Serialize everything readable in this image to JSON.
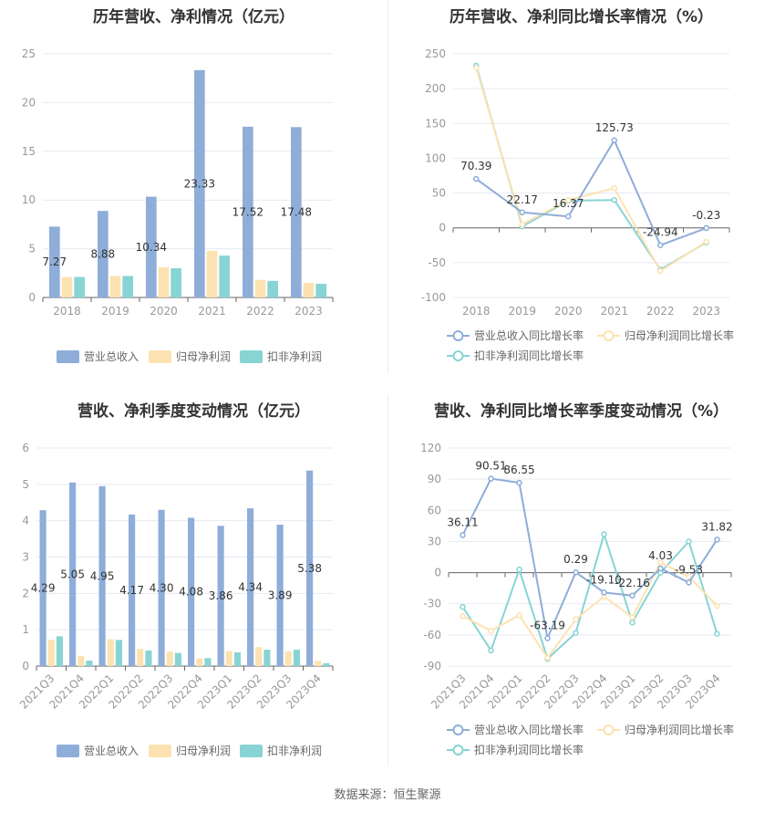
{
  "source_text": "数据来源：恒生聚源",
  "colors": {
    "revenue": "#8eadd9",
    "parent_profit": "#fde2b1",
    "deducted_profit": "#88d4d4",
    "grid": "#e6e9f3"
  },
  "chart_data": [
    {
      "type": "bar",
      "title": "历年营收、净利情况（亿元）",
      "categories": [
        "2018",
        "2019",
        "2020",
        "2021",
        "2022",
        "2023"
      ],
      "ylim": [
        0,
        25
      ],
      "yticks": [
        0,
        5,
        10,
        15,
        20,
        25
      ],
      "series": [
        {
          "name": "营业总收入",
          "values": [
            7.27,
            8.88,
            10.34,
            23.33,
            17.52,
            17.48
          ],
          "labels": [
            "7.27",
            "8.88",
            "10.34",
            "23.33",
            "17.52",
            "17.48"
          ]
        },
        {
          "name": "归母净利润",
          "values": [
            2.1,
            2.2,
            3.1,
            4.8,
            1.8,
            1.5
          ]
        },
        {
          "name": "扣非净利润",
          "values": [
            2.1,
            2.2,
            3.0,
            4.3,
            1.7,
            1.4
          ]
        }
      ],
      "legend": "bottom"
    },
    {
      "type": "line",
      "title": "历年营收、净利同比增长率情况（%）",
      "categories": [
        "2018",
        "2019",
        "2020",
        "2021",
        "2022",
        "2023"
      ],
      "ylim": [
        -100,
        250
      ],
      "yticks": [
        -100,
        -50,
        0,
        50,
        100,
        150,
        200,
        250
      ],
      "series": [
        {
          "name": "营业总收入同比增长率",
          "values": [
            70.39,
            22.17,
            16.37,
            125.73,
            -24.94,
            -0.23
          ],
          "labels": [
            "70.39",
            "22.17",
            "16.37",
            "125.73",
            "-24.94",
            "-0.23"
          ]
        },
        {
          "name": "归母净利润同比增长率",
          "values": [
            230,
            5,
            40,
            57,
            -62,
            -20
          ]
        },
        {
          "name": "扣非净利润同比增长率",
          "values": [
            233,
            2,
            39,
            40,
            -60,
            -21
          ]
        }
      ],
      "legend": "bottom"
    },
    {
      "type": "bar",
      "title": "营收、净利季度变动情况（亿元）",
      "categories": [
        "2021Q3",
        "2021Q4",
        "2022Q1",
        "2022Q2",
        "2022Q3",
        "2022Q4",
        "2023Q1",
        "2023Q2",
        "2023Q3",
        "2023Q4"
      ],
      "ylim": [
        0,
        6
      ],
      "yticks": [
        0,
        1,
        2,
        3,
        4,
        5,
        6
      ],
      "series": [
        {
          "name": "营业总收入",
          "values": [
            4.29,
            5.05,
            4.95,
            4.17,
            4.3,
            4.08,
            3.86,
            4.34,
            3.89,
            5.38
          ],
          "labels": [
            "4.29",
            "5.05",
            "4.95",
            "4.17",
            "4.30",
            "4.08",
            "3.86",
            "4.34",
            "3.89",
            "5.38"
          ]
        },
        {
          "name": "归母净利润",
          "values": [
            0.72,
            0.28,
            0.74,
            0.47,
            0.4,
            0.21,
            0.41,
            0.52,
            0.41,
            0.14
          ]
        },
        {
          "name": "扣非净利润",
          "values": [
            0.82,
            0.15,
            0.72,
            0.43,
            0.36,
            0.22,
            0.38,
            0.45,
            0.45,
            0.08
          ]
        }
      ],
      "legend": "bottom"
    },
    {
      "type": "line",
      "title": "营收、净利同比增长率季度变动情况（%）",
      "categories": [
        "2021Q3",
        "2021Q4",
        "2022Q1",
        "2022Q2",
        "2022Q3",
        "2022Q4",
        "2023Q1",
        "2023Q2",
        "2023Q3",
        "2023Q4"
      ],
      "ylim": [
        -90,
        120
      ],
      "yticks": [
        -90,
        -60,
        -30,
        0,
        30,
        60,
        90,
        120
      ],
      "series": [
        {
          "name": "营业总收入同比增长率",
          "values": [
            36.11,
            90.51,
            86.55,
            -63.19,
            0.29,
            -19.1,
            -22.16,
            4.03,
            -9.53,
            31.82
          ],
          "labels": [
            "36.11",
            "90.51",
            "86.55",
            "-63.19",
            "0.29",
            "-19.10",
            "-22.16",
            "4.03",
            "-9.53",
            "31.82"
          ]
        },
        {
          "name": "归母净利润同比增长率",
          "values": [
            -42,
            -56,
            -41,
            -82,
            -45,
            -23,
            -43,
            10,
            -4,
            -32
          ]
        },
        {
          "name": "扣非净利润同比增长率",
          "values": [
            -33,
            -75,
            3,
            -83,
            -58,
            37,
            -48,
            0,
            30,
            -59
          ]
        }
      ],
      "legend": "bottom"
    }
  ]
}
